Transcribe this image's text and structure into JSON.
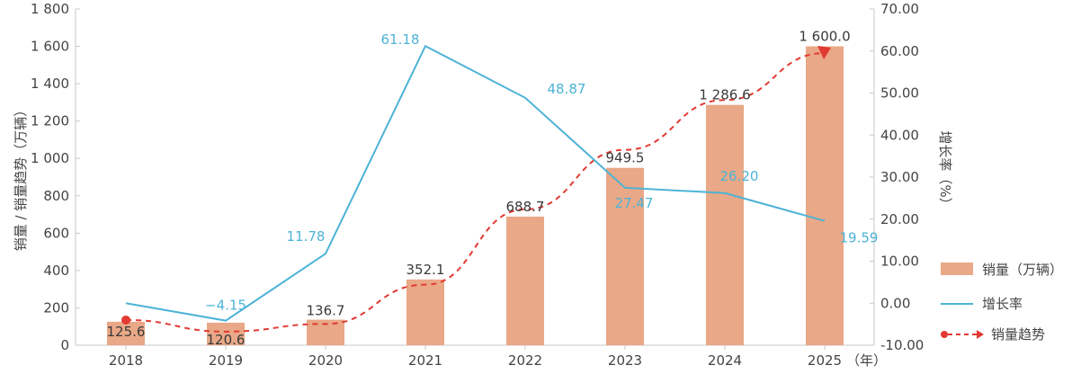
{
  "chart_data": {
    "type": "bar",
    "categories": [
      "2018",
      "2019",
      "2020",
      "2021",
      "2022",
      "2023",
      "2024",
      "2025"
    ],
    "x_unit_label": "（年）",
    "left_axis": {
      "label": "销量 / 销量趋势（万辆）",
      "ylim": [
        0,
        1800
      ],
      "ticks": [
        "0",
        "200",
        "400",
        "600",
        "800",
        "1 000",
        "1 200",
        "1 400",
        "1 600",
        "1 800"
      ]
    },
    "right_axis": {
      "label": "增长率（%）",
      "ylim": [
        -10,
        70
      ],
      "ticks": [
        "-10.00",
        "0.00",
        "10.00",
        "20.00",
        "30.00",
        "40.00",
        "50.00",
        "60.00",
        "70.00"
      ]
    },
    "series": [
      {
        "name": "销量（万辆）",
        "type": "bar",
        "axis": "left",
        "values": [
          125.6,
          120.6,
          136.7,
          352.1,
          688.7,
          949.5,
          1286.6,
          1600.0
        ],
        "labels": [
          "125.6",
          "120.6",
          "136.7",
          "352.1",
          "688.7",
          "949.5",
          "1 286.6",
          "1 600.0"
        ]
      },
      {
        "name": "增长率",
        "type": "line",
        "axis": "right",
        "values": [
          0,
          -4.15,
          11.78,
          61.18,
          48.87,
          27.47,
          26.2,
          19.59
        ],
        "labels": [
          "",
          "−4.15",
          "11.78",
          "61.18",
          "48.87",
          "27.47",
          "26.20",
          "19.59"
        ]
      },
      {
        "name": "销量趋势",
        "type": "line",
        "style": "dashed",
        "axis": "left",
        "values": [
          135,
          73,
          114,
          324,
          727,
          1046,
          1313,
          1564
        ]
      }
    ],
    "colors": {
      "bar": "#e9a887",
      "growth_line": "#4db3d6",
      "trend_line": "#e13a32",
      "axis": "#c8c8c8"
    },
    "grid": false,
    "legend_position": "bottom-right"
  }
}
